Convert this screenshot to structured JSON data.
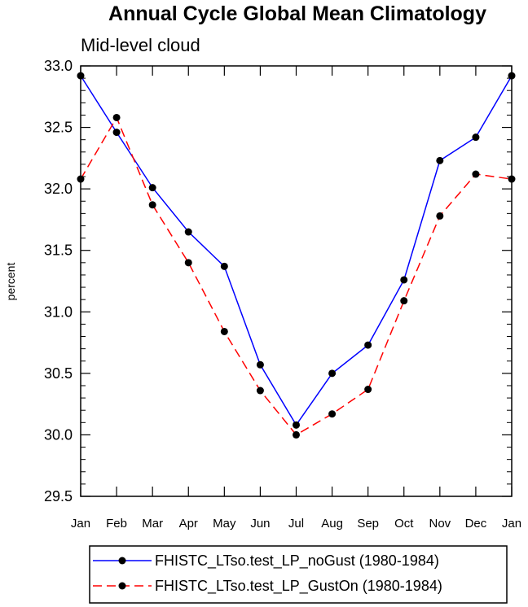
{
  "chart_data": {
    "type": "line",
    "title": "Annual Cycle Global Mean Climatology",
    "subtitle": "Mid-level cloud",
    "xlabel": "",
    "ylabel": "percent",
    "ylim": [
      29.5,
      33.0
    ],
    "yticks": [
      "29.5",
      "30.0",
      "30.5",
      "31.0",
      "31.5",
      "32.0",
      "32.5",
      "33.0"
    ],
    "ytick_values": [
      29.5,
      30.0,
      30.5,
      31.0,
      31.5,
      32.0,
      32.5,
      33.0
    ],
    "categories": [
      "Jan",
      "Feb",
      "Mar",
      "Apr",
      "May",
      "Jun",
      "Jul",
      "Aug",
      "Sep",
      "Oct",
      "Nov",
      "Dec",
      "Jan"
    ],
    "series": [
      {
        "name": "FHISTC_LTso.test_LP_noGust (1980-1984)",
        "color": "#0000ff",
        "dash": "solid",
        "values": [
          32.92,
          32.46,
          32.01,
          31.65,
          31.37,
          30.57,
          30.08,
          30.5,
          30.73,
          31.26,
          32.23,
          32.42,
          32.92
        ]
      },
      {
        "name": "FHISTC_LTso.test_LP_GustOn (1980-1984)",
        "color": "#ff0000",
        "dash": "dashed",
        "values": [
          32.08,
          32.58,
          31.87,
          31.4,
          30.84,
          30.36,
          30.0,
          30.17,
          30.37,
          31.09,
          31.78,
          32.12,
          32.08
        ]
      }
    ],
    "legend_position": "bottom"
  }
}
